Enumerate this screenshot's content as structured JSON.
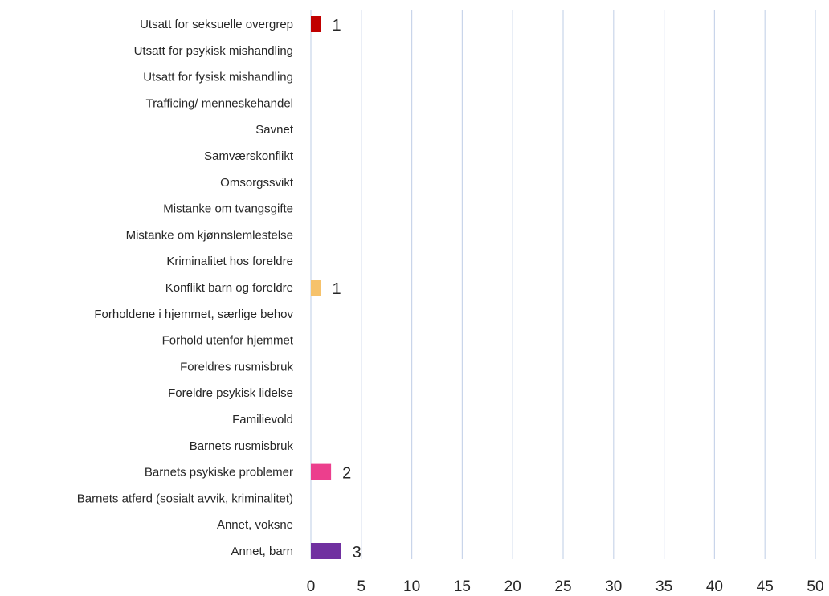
{
  "chart_data": {
    "type": "bar",
    "orientation": "horizontal",
    "title": "",
    "xlabel": "",
    "ylabel": "",
    "xlim": [
      0,
      50
    ],
    "x_ticks": [
      0,
      5,
      10,
      15,
      20,
      25,
      30,
      35,
      40,
      45,
      50
    ],
    "grid": "vertical",
    "legend": "none",
    "categories": [
      "Utsatt for seksuelle overgrep",
      "Utsatt for psykisk mishandling",
      "Utsatt for fysisk mishandling",
      "Trafficing/ menneskehandel",
      "Savnet",
      "Samværskonflikt",
      "Omsorgssvikt",
      "Mistanke om tvangsgifte",
      "Mistanke om kjønnslemlestelse",
      "Kriminalitet hos foreldre",
      "Konflikt barn og foreldre",
      "Forholdene i hjemmet, særlige behov",
      "Forhold utenfor hjemmet",
      "Foreldres rusmisbruk",
      "Foreldre psykisk lidelse",
      "Familievold",
      "Barnets rusmisbruk",
      "Barnets psykiske problemer",
      "Barnets atferd (sosialt avvik, kriminalitet)",
      "Annet, voksne",
      "Annet, barn"
    ],
    "values": [
      1,
      0,
      0,
      0,
      0,
      0,
      0,
      0,
      0,
      0,
      1,
      0,
      0,
      0,
      0,
      0,
      0,
      2,
      0,
      0,
      3
    ],
    "data_labels": [
      "1",
      "",
      "",
      "",
      "",
      "",
      "",
      "",
      "",
      "",
      "1",
      "",
      "",
      "",
      "",
      "",
      "",
      "2",
      "",
      "",
      "3"
    ],
    "colors": [
      "#c00000",
      "#4472c4",
      "#4472c4",
      "#4472c4",
      "#4472c4",
      "#4472c4",
      "#4472c4",
      "#4472c4",
      "#4472c4",
      "#4472c4",
      "#f6c26b",
      "#4472c4",
      "#4472c4",
      "#4472c4",
      "#4472c4",
      "#4472c4",
      "#4472c4",
      "#ec3f8d",
      "#4472c4",
      "#4472c4",
      "#7030a0"
    ],
    "gridline_color": "#c9d5ea"
  }
}
